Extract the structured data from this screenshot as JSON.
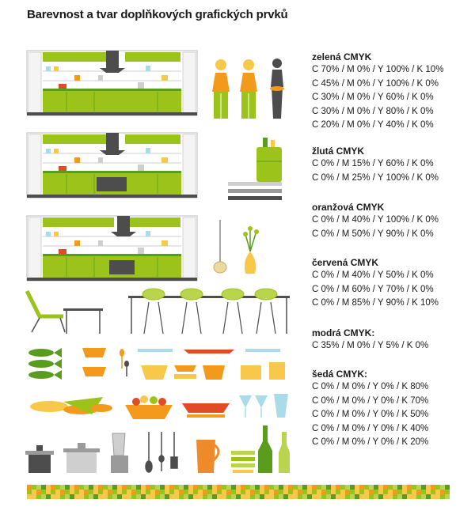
{
  "page": {
    "title": "Barevnost a tvar doplňkových grafických prvků"
  },
  "palettes": [
    {
      "name": "zelená CMYK",
      "lines": [
        "C 70% / M 0% / Y 100% / K 10%",
        "C 45% / M 0% / Y 100% / K 0%",
        "C 30% / M 0% / Y 60% / K 0%",
        "C 30% / M 0% / Y 80% / K 0%",
        "C 20% / M 0% / Y 40% / K 0%"
      ]
    },
    {
      "name": "žlutá CMYK",
      "lines": [
        "C 0% / M 15% / Y 60% / K 0%",
        "C 0% / M 25% / Y 100% / K 0%"
      ]
    },
    {
      "name": "oranžová CMYK",
      "lines": [
        "C 0% / M 40% / Y 100% / K 0%",
        "C 0% / M 50% / Y 90% / K 0%"
      ]
    },
    {
      "name": "červená CMYK",
      "lines": [
        "C 0% / M 40% / Y 50% / K 0%",
        "C 0% / M 60% / Y 70% / K 0%",
        "C 0% / M 85% / Y 90% / K 10%"
      ]
    },
    {
      "name": "modrá CMYK:",
      "lines": [
        "C 35% / M 0% / Y 5% / K 0%"
      ]
    },
    {
      "name": "šedá CMYK:",
      "lines": [
        "C 0% / M 0% / Y 0% / K 80%",
        "C 0% / M 0% / Y 0% / K 70%",
        "C 0% / M 0% / Y 0% / K 50%",
        "C 0% / M 0% / Y 0% / K 40%",
        "C 0% / M 0% / Y 0% / K 20%"
      ]
    }
  ],
  "colors": {
    "green_dark": "#5a9c1e",
    "green": "#9cc31a",
    "green_light": "#b9d54e",
    "yellow": "#f7c84a",
    "orange": "#f39a1c",
    "orange2": "#ee8a2a",
    "red": "#e24b27",
    "red_light": "#f0907a",
    "blue": "#a9dbe8",
    "gray_dark": "#4d4d4d",
    "gray": "#9a9a9a",
    "gray_light": "#cfcfcf"
  }
}
